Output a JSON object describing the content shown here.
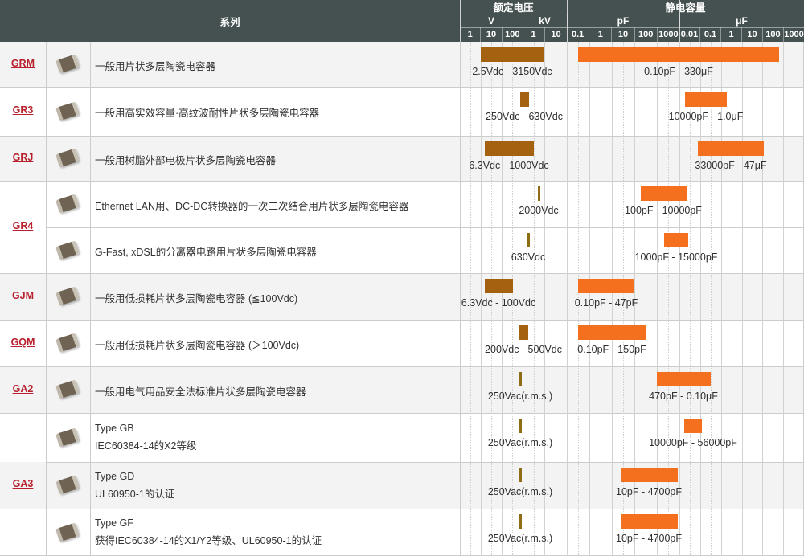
{
  "header": {
    "series_label": "系列",
    "rated_voltage": {
      "label": "额定电压",
      "units": [
        {
          "name": "V",
          "ticks": [
            "1",
            "10",
            "100"
          ]
        },
        {
          "name": "kV",
          "ticks": [
            "1",
            "10"
          ]
        }
      ]
    },
    "capacitance": {
      "label": "静电容量",
      "units": [
        {
          "name": "pF",
          "ticks": [
            "0.1",
            "1",
            "10",
            "100",
            "1000"
          ]
        },
        {
          "name": "μF",
          "ticks": [
            "0.01",
            "0.1",
            "1",
            "10",
            "100",
            "1000"
          ]
        }
      ]
    }
  },
  "colors": {
    "header_bg": "#455050",
    "series_link": "#b7202c",
    "voltage_bar": "#a4610f",
    "voltage_single_mark": "#8f6d16",
    "capacitance_bar": "#f4701f",
    "row_alt_bg": "#f3f3f3"
  },
  "groups": [
    {
      "series": "GRM",
      "rows": [
        {
          "desc": "一般用片状多层陶瓷电容器",
          "voltage": "2.5Vdc - 3150Vdc",
          "capacitance": "0.10pF - 330μF"
        }
      ]
    },
    {
      "series": "GR3",
      "rows": [
        {
          "desc": "一般用高实效容量·高纹波耐性片状多层陶瓷电容器",
          "voltage": "250Vdc - 630Vdc",
          "capacitance": "10000pF - 1.0μF"
        }
      ]
    },
    {
      "series": "GRJ",
      "rows": [
        {
          "desc": "一般用树脂外部电极片状多层陶瓷电容器",
          "voltage": "6.3Vdc - 1000Vdc",
          "capacitance": "33000pF - 47μF"
        }
      ]
    },
    {
      "series": "GR4",
      "rows": [
        {
          "desc": "Ethernet LAN用、DC-DC转换器的一次二次结合用片状多层陶瓷电容器",
          "voltage": "2000Vdc",
          "capacitance": "100pF - 10000pF"
        },
        {
          "desc": "G-Fast, xDSL的分离器电路用片状多层陶瓷电容器",
          "voltage": "630Vdc",
          "capacitance": "1000pF - 15000pF"
        }
      ]
    },
    {
      "series": "GJM",
      "rows": [
        {
          "desc": "一般用低损耗片状多层陶瓷电容器 (≦100Vdc)",
          "voltage": "6.3Vdc - 100Vdc",
          "capacitance": "0.10pF - 47pF"
        }
      ]
    },
    {
      "series": "GQM",
      "rows": [
        {
          "desc": "一般用低损耗片状多层陶瓷电容器 (＞100Vdc)",
          "voltage": "200Vdc - 500Vdc",
          "capacitance": "0.10pF - 150pF"
        }
      ]
    },
    {
      "series": "GA2",
      "rows": [
        {
          "desc": "一般用电气用品安全法标准片状多层陶瓷电容器",
          "voltage": "250Vac(r.m.s.)",
          "capacitance": "470pF - 0.10μF"
        }
      ]
    },
    {
      "series": "GA3",
      "rows": [
        {
          "desc": "Type GB",
          "desc2": "IEC60384-14的X2等级",
          "voltage": "250Vac(r.m.s.)",
          "capacitance": "10000pF - 56000pF"
        },
        {
          "desc": "Type GD",
          "desc2": "UL60950-1的认证",
          "voltage": "250Vac(r.m.s.)",
          "capacitance": "10pF - 4700pF"
        },
        {
          "desc": "Type GF",
          "desc2": "获得IEC60384-14的X1/Y2等级、UL60950-1的认证",
          "voltage": "250Vac(r.m.s.)",
          "capacitance": "10pF - 4700pF"
        }
      ]
    }
  ]
}
